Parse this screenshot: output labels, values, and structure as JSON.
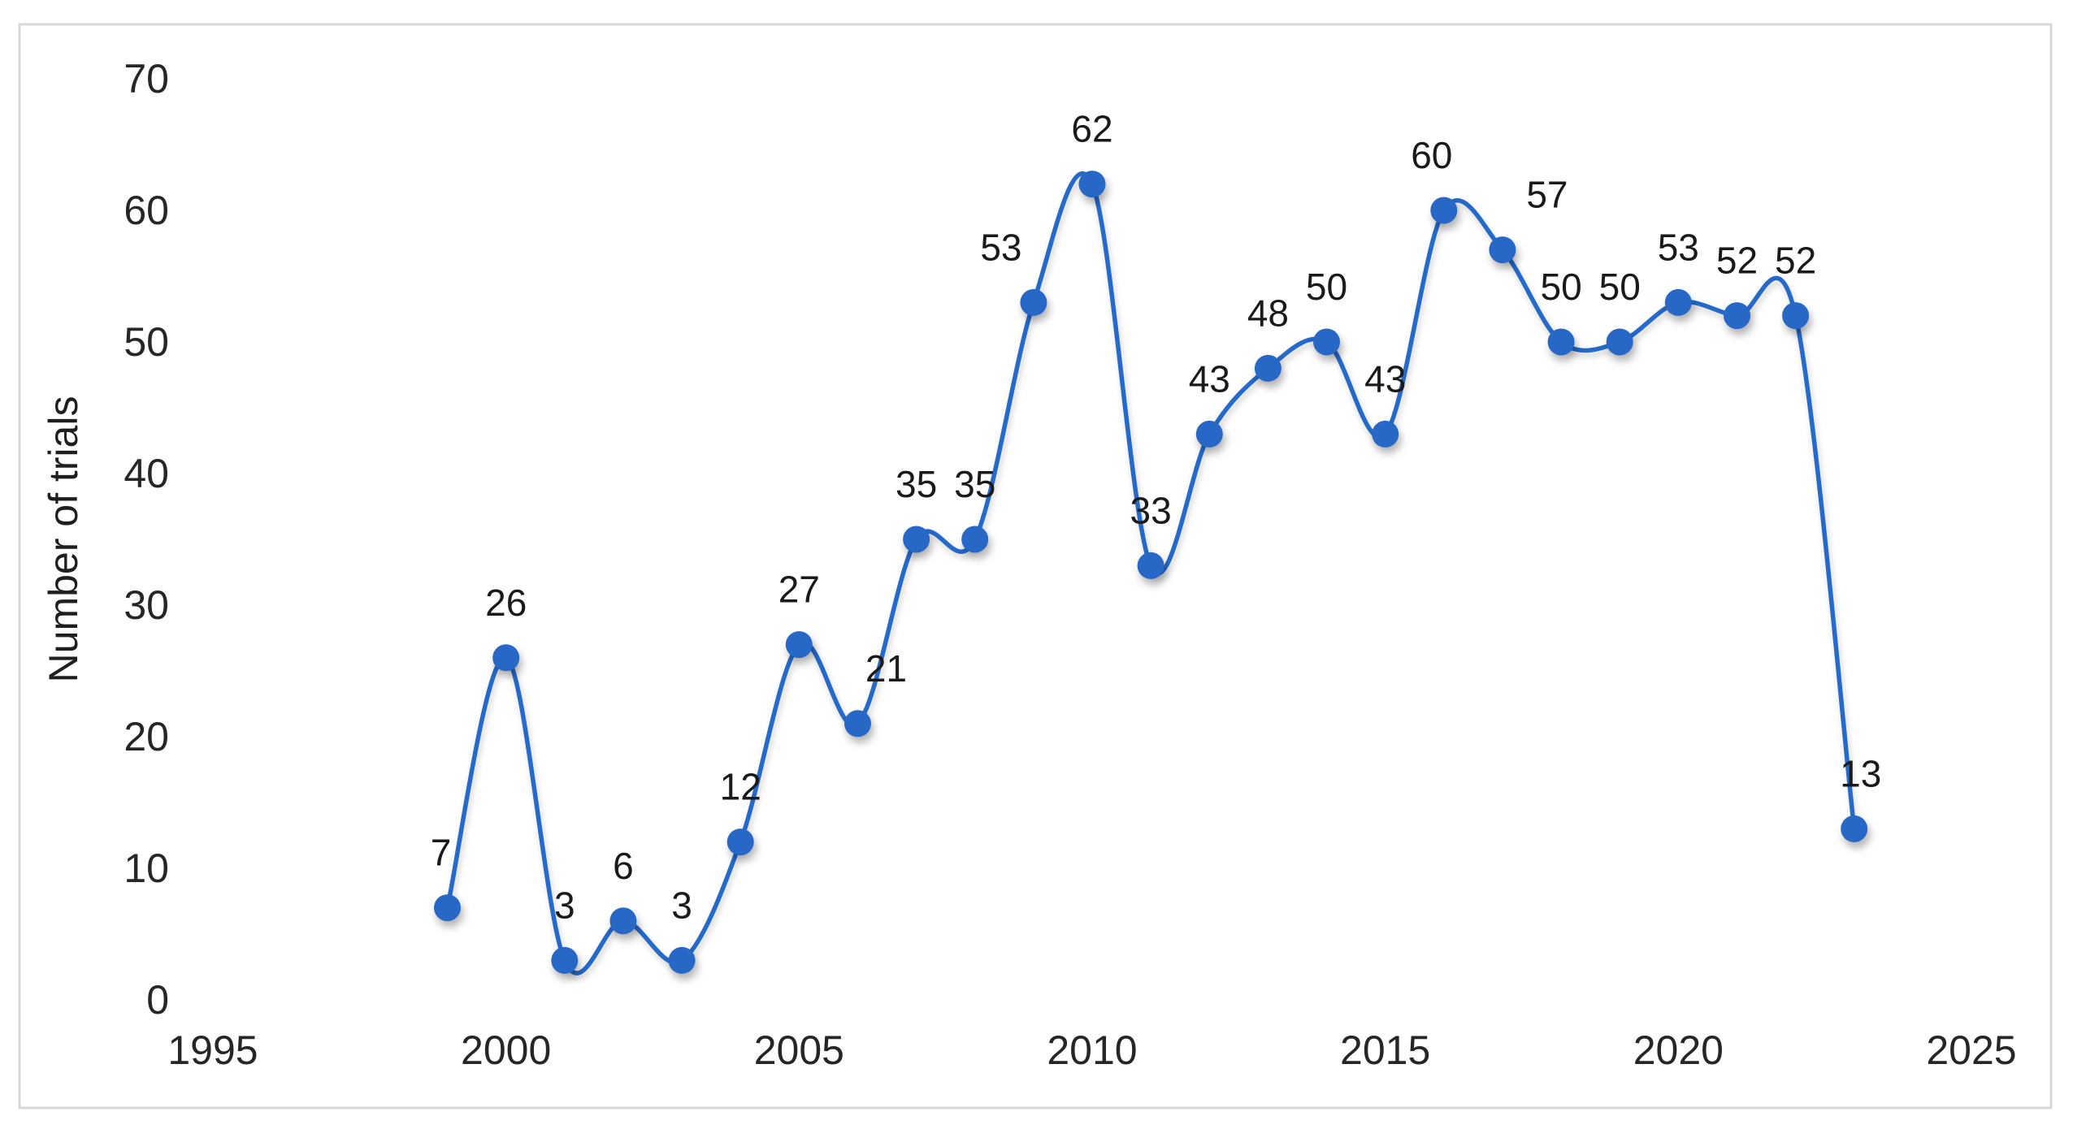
{
  "page": {
    "background": "#ffffff",
    "chart_border_color": "#d8d8d8"
  },
  "chart_data": {
    "type": "line",
    "title": "",
    "xlabel": "",
    "ylabel": "Number of trials",
    "x": [
      1999,
      2000,
      2001,
      2002,
      2003,
      2004,
      2005,
      2006,
      2007,
      2008,
      2009,
      2010,
      2011,
      2012,
      2013,
      2014,
      2015,
      2016,
      2017,
      2018,
      2019,
      2020,
      2021,
      2022,
      2023
    ],
    "values": [
      7,
      26,
      3,
      6,
      3,
      12,
      27,
      21,
      35,
      35,
      53,
      62,
      33,
      43,
      48,
      50,
      43,
      60,
      57,
      50,
      50,
      53,
      52,
      52,
      13
    ],
    "xlim": [
      1995,
      2025
    ],
    "ylim": [
      0,
      70
    ],
    "x_ticks": [
      1995,
      2000,
      2005,
      2010,
      2015,
      2020,
      2025
    ],
    "y_ticks": [
      0,
      10,
      20,
      30,
      40,
      50,
      60,
      70
    ],
    "grid": false,
    "legend": false,
    "smooth_line": true,
    "data_labels_shown": true,
    "line_color": "#2569c9",
    "marker_color": "#2767c6",
    "label_dx": {
      "0": -8,
      "7": 35,
      "10": -40,
      "17": -15,
      "18": 55,
      "24": 8
    }
  }
}
